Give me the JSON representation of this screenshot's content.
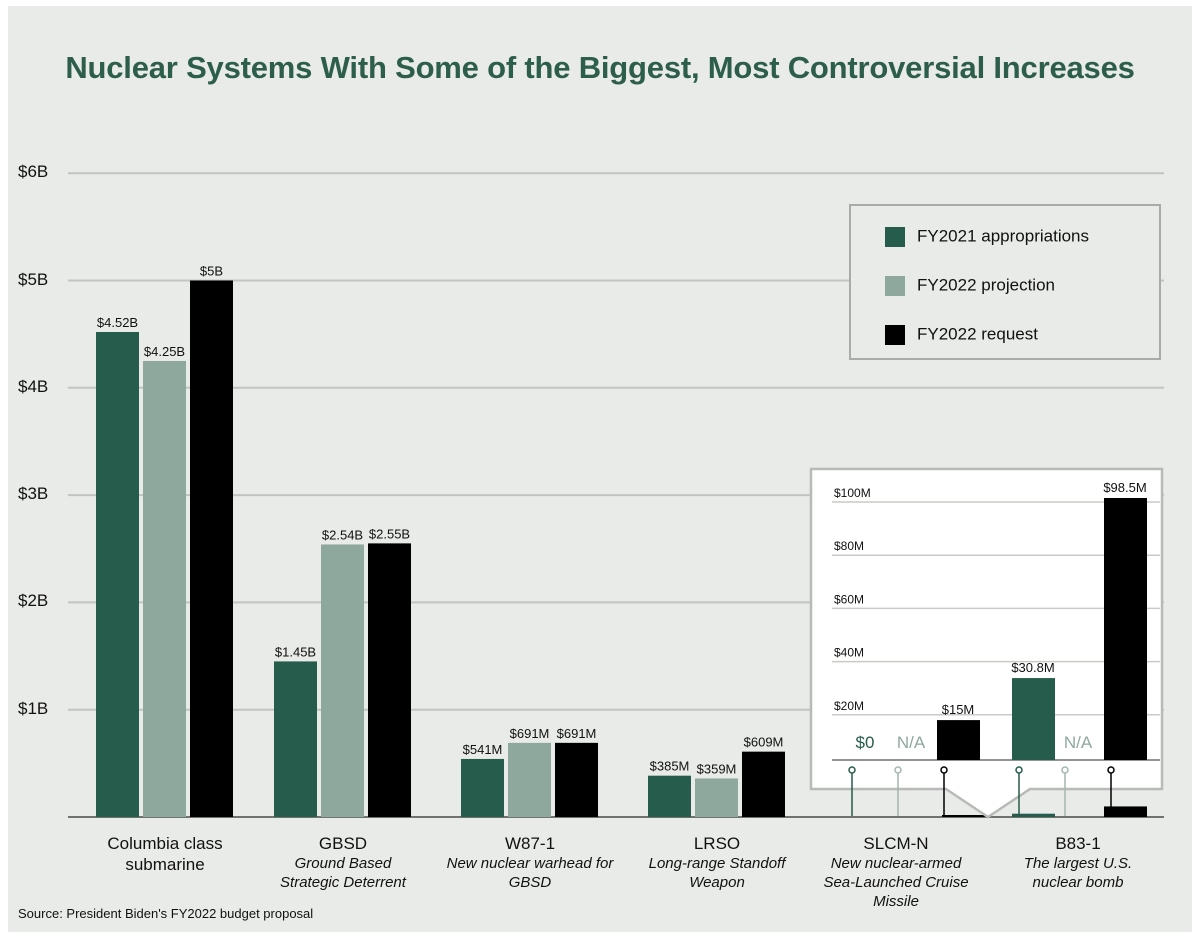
{
  "title": "Nuclear Systems With Some of the Biggest, Most Controversial Increases",
  "source": "Source: President Biden's FY2022 budget proposal",
  "colors": {
    "fy2021": "#265c4b",
    "fy2022_projection": "#8fa89e",
    "fy2022_request": "#000000",
    "grid": "#c2c4c1",
    "panel": "#e9ebe8"
  },
  "chart_data": {
    "type": "bar",
    "title": "Nuclear Systems With Some of the Biggest, Most Controversial Increases",
    "ylim": [
      0,
      6
    ],
    "yunit": "billions of USD",
    "yticks": [
      "$1B",
      "$2B",
      "$3B",
      "$4B",
      "$5B",
      "$6B"
    ],
    "grid": true,
    "legend_position": "top-right",
    "categories": [
      {
        "name": "Columbia class submarine",
        "subtitle": ""
      },
      {
        "name": "GBSD",
        "subtitle": "Ground Based Strategic Deterrent"
      },
      {
        "name": "W87-1",
        "subtitle": "New nuclear warhead for GBSD"
      },
      {
        "name": "LRSO",
        "subtitle": "Long-range Standoff Weapon"
      },
      {
        "name": "SLCM-N",
        "subtitle": "New nuclear-armed Sea-Launched Cruise Missile"
      },
      {
        "name": "B83-1",
        "subtitle": "The largest U.S. nuclear bomb"
      }
    ],
    "series": [
      {
        "name": "FY2021 appropriations",
        "values": [
          4.52,
          1.45,
          0.541,
          0.385,
          0,
          0.0308
        ],
        "labels": [
          "$4.52B",
          "$1.45B",
          "$541M",
          "$385M",
          "$0",
          "$30.8M"
        ]
      },
      {
        "name": "FY2022 projection",
        "values": [
          4.25,
          2.54,
          0.691,
          0.359,
          null,
          null
        ],
        "labels": [
          "$4.25B",
          "$2.54B",
          "$691M",
          "$359M",
          "N/A",
          "N/A"
        ]
      },
      {
        "name": "FY2022 request",
        "values": [
          5,
          2.55,
          0.691,
          0.609,
          0.015,
          0.0985
        ],
        "labels": [
          "$5B",
          "$2.55B",
          "$691M",
          "$609M",
          "$15M",
          "$98.5M"
        ]
      }
    ],
    "inset": {
      "ylim": [
        0,
        100
      ],
      "yunit": "millions of USD",
      "yticks": [
        "$20M",
        "$40M",
        "$60M",
        "$80M",
        "$100M"
      ],
      "categories": [
        "SLCM-N",
        "B83-1"
      ],
      "values": {
        "SLCM-N": [
          0,
          null,
          15
        ],
        "B83-1": [
          30.8,
          null,
          98.5
        ]
      }
    }
  }
}
